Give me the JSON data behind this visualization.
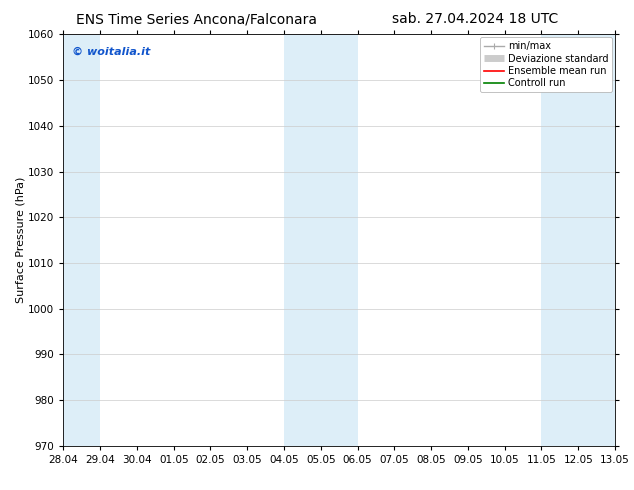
{
  "title_left": "ENS Time Series Ancona/Falconara",
  "title_right": "sab. 27.04.2024 18 UTC",
  "ylabel": "Surface Pressure (hPa)",
  "ylim": [
    970,
    1060
  ],
  "yticks": [
    970,
    980,
    990,
    1000,
    1010,
    1020,
    1030,
    1040,
    1050,
    1060
  ],
  "xtick_labels": [
    "28.04",
    "29.04",
    "30.04",
    "01.05",
    "02.05",
    "03.05",
    "04.05",
    "05.05",
    "06.05",
    "07.05",
    "08.05",
    "09.05",
    "10.05",
    "11.05",
    "12.05",
    "13.05"
  ],
  "xtick_positions": [
    0,
    1,
    2,
    3,
    4,
    5,
    6,
    7,
    8,
    9,
    10,
    11,
    12,
    13,
    14,
    15
  ],
  "shaded_bands": [
    {
      "xstart": 0.0,
      "xend": 1.0
    },
    {
      "xstart": 6.0,
      "xend": 8.0
    },
    {
      "xstart": 13.0,
      "xend": 15.0
    }
  ],
  "shade_color": "#ddeef8",
  "watermark_text": "© woitalia.it",
  "watermark_color": "#1155cc",
  "background_color": "#ffffff",
  "grid_color": "#cccccc",
  "title_fontsize": 10,
  "tick_fontsize": 7.5,
  "ylabel_fontsize": 8,
  "legend_fontsize": 7,
  "watermark_fontsize": 8
}
